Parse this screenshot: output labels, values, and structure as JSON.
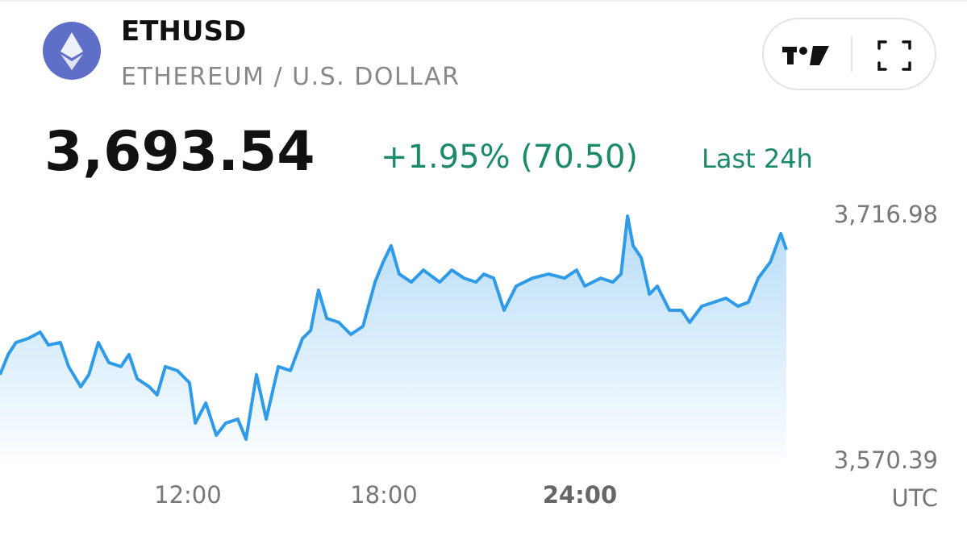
{
  "header": {
    "symbol": "ETHUSD",
    "name": "ETHEREUM / U.S. DOLLAR",
    "price": "3,693.54",
    "change": "+1.95% (70.50)",
    "period": "Last 24h"
  },
  "chart_data": {
    "type": "line",
    "color": "#2f9be8",
    "x": [
      6.25,
      6.5,
      6.74,
      7.11,
      7.48,
      7.73,
      8.1,
      8.35,
      8.72,
      8.97,
      9.26,
      9.58,
      9.95,
      10.2,
      10.45,
      10.82,
      11.06,
      11.31,
      11.68,
      12.05,
      12.23,
      12.55,
      12.87,
      13.16,
      13.53,
      13.78,
      14.1,
      14.4,
      14.77,
      15.14,
      15.51,
      15.76,
      16.0,
      16.25,
      16.62,
      16.99,
      17.36,
      17.73,
      17.98,
      18.22,
      18.47,
      18.84,
      19.21,
      19.71,
      20.08,
      20.45,
      20.82,
      21.06,
      21.36,
      21.68,
      22.05,
      22.55,
      23.04,
      23.53,
      23.9,
      24.15,
      24.64,
      25.01,
      25.26,
      25.46,
      25.63,
      25.88,
      26.13,
      26.37,
      26.74,
      27.11,
      27.36,
      27.73,
      28.1,
      28.47,
      28.84,
      29.16,
      29.46,
      29.83,
      30.15,
      30.32
    ],
    "values": [
      3620.9,
      3632.9,
      3640.1,
      3642.5,
      3646.3,
      3638.6,
      3640.1,
      3625.7,
      3613.7,
      3620.9,
      3640.1,
      3628.1,
      3625.7,
      3632.9,
      3618.5,
      3613.7,
      3608.8,
      3625.7,
      3623.3,
      3616.1,
      3592.0,
      3604.0,
      3584.8,
      3592.0,
      3594.4,
      3582.4,
      3620.9,
      3594.4,
      3625.7,
      3623.3,
      3642.5,
      3647.3,
      3671.3,
      3654.5,
      3652.1,
      3644.9,
      3649.7,
      3676.1,
      3688.1,
      3697.8,
      3680.9,
      3676.1,
      3683.3,
      3676.1,
      3683.3,
      3678.5,
      3676.1,
      3680.9,
      3678.5,
      3659.3,
      3673.7,
      3678.5,
      3680.9,
      3678.5,
      3683.3,
      3673.7,
      3678.5,
      3676.1,
      3680.9,
      3715.5,
      3697.8,
      3690.6,
      3668.9,
      3673.7,
      3659.3,
      3659.3,
      3652.1,
      3661.7,
      3664.1,
      3666.5,
      3661.7,
      3664.1,
      3678.5,
      3688.1,
      3705.0,
      3695.4
    ],
    "xlim": [
      6.25,
      30.32
    ],
    "xticks": [
      {
        "value": 12,
        "label": "12:00"
      },
      {
        "value": 18,
        "label": "18:00"
      },
      {
        "value": 24,
        "label": "24:00"
      }
    ],
    "ylim": [
      3570.39,
      3716.98
    ],
    "yticks": [
      {
        "value": 3570.39,
        "label": "3,570.39"
      },
      {
        "value": 3716.98,
        "label": "3,716.98"
      }
    ],
    "timezone": "UTC"
  }
}
